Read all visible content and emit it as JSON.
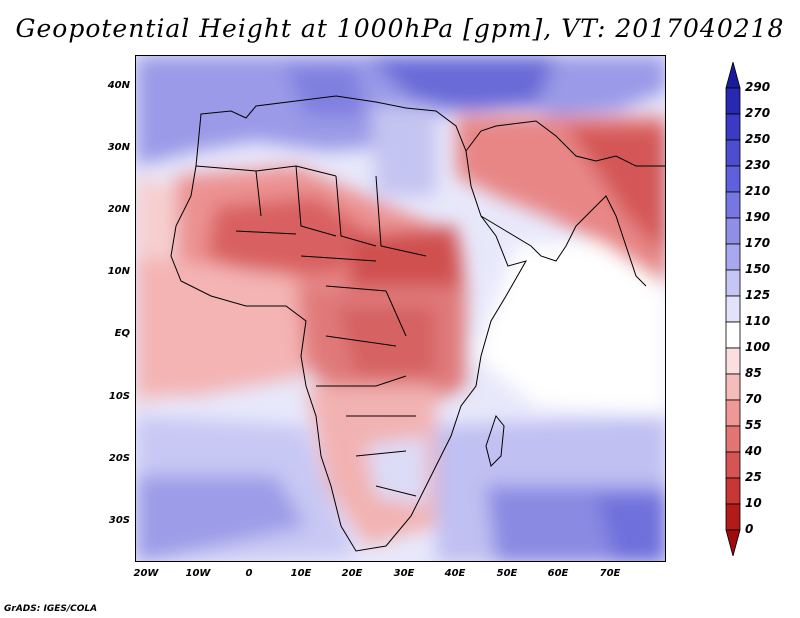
{
  "title": "Geopotential Height at 1000hPa [gpm], VT: 2017040218",
  "footer": "GrADS: IGES/COLA",
  "map": {
    "lat_labels": [
      "40N",
      "30N",
      "20N",
      "10N",
      "EQ",
      "10S",
      "20S",
      "30S"
    ],
    "lon_labels": [
      "20W",
      "10W",
      "0",
      "10E",
      "20E",
      "30E",
      "40E",
      "50E",
      "60E",
      "70E"
    ]
  },
  "colorbar": {
    "labels": [
      "290",
      "270",
      "250",
      "230",
      "210",
      "190",
      "170",
      "150",
      "125",
      "110",
      "100",
      "85",
      "70",
      "55",
      "40",
      "25",
      "10",
      "0"
    ],
    "colors": [
      "#1a1a9e",
      "#2828b0",
      "#3a3ac4",
      "#4d4dd0",
      "#6060dc",
      "#7777e4",
      "#8f8fe8",
      "#a8a8ee",
      "#c6c6f4",
      "#e2e2fa",
      "#ffffff",
      "#fbdede",
      "#f6bcbc",
      "#ee9898",
      "#e27474",
      "#d65454",
      "#c83636",
      "#b31b1b",
      "#9e0c0c"
    ]
  }
}
